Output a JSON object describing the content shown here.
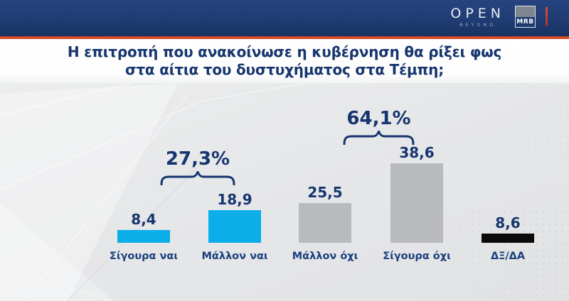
{
  "header": {
    "channel_logo": "OPEN",
    "channel_logo_sub": "BEYOND",
    "pollster_logo": "MRB"
  },
  "title": {
    "line1": "Η επιτροπή που ανακοίνωσε η κυβέρνηση θα ρίξει φως",
    "line2": "στα αίτια του δυστυχήματος στα Τέμπη;"
  },
  "chart_data": {
    "type": "bar",
    "title": "Η επιτροπή που ανακοίνωσε η κυβέρνηση θα ρίξει φως στα αίτια του δυστυχήματος στα Τέμπη;",
    "categories": [
      "Σίγουρα ναι",
      "Μάλλον ναι",
      "Μάλλον όχι",
      "Σίγουρα όχι",
      "ΔΞ/ΔΑ"
    ],
    "values": [
      8.4,
      18.9,
      25.5,
      38.6,
      8.6
    ],
    "value_labels": [
      "8,4",
      "18,9",
      "25,5",
      "38,6",
      "8,6"
    ],
    "bar_colors": [
      "#0caeea",
      "#0caeea",
      "#b9babc",
      "#b9babc",
      "#0a0a0b"
    ],
    "annotations": [
      {
        "label": "27,3%",
        "group": [
          "Σίγουρα ναι",
          "Μάλλον ναι"
        ],
        "meaning": "total yes"
      },
      {
        "label": "64,1%",
        "group": [
          "Μάλλον όχι",
          "Σίγουρα όχι"
        ],
        "meaning": "total no"
      }
    ],
    "ylim": [
      0,
      45
    ],
    "grid": false,
    "legend": false,
    "xlabel": "",
    "ylabel": "",
    "not_to_scale_bars": [
      "ΔΞ/ΔΑ"
    ]
  },
  "colors": {
    "header_navy": "#1d3a72",
    "accent_orange": "#e2552c",
    "text_navy": "#16356f",
    "bar_cyan": "#0caeea",
    "bar_gray": "#b9babc",
    "bar_black": "#0a0a0b",
    "background_gray": "#e6e7e9"
  }
}
